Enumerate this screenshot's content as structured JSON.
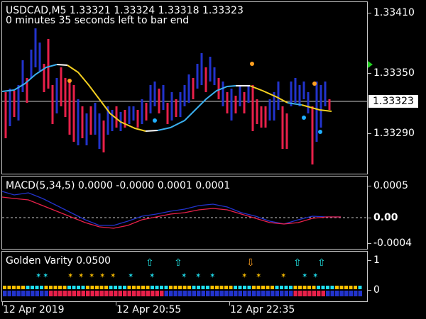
{
  "main": {
    "symbol_line": "USDCAD,M5  1.33321 1.33324 1.33318 1.33323",
    "timer_text": "0 minutes 35 seconds left to bar end",
    "price_labels": [
      "1.33410",
      "1.33350",
      "1.33290"
    ],
    "current_price": "1.33323"
  },
  "macd": {
    "title": "MACD(5,34,5) 0.0000 -0.0000 0.0001 0.0001",
    "labels": [
      "0.0005",
      "0.00",
      "-0.0004"
    ]
  },
  "golden_variety": {
    "title": "Golden Varity 0.0500",
    "labels": [
      "1",
      "0"
    ]
  },
  "time_axis": [
    "12 Apr 2019",
    "12 Apr 20:55",
    "12 Apr 22:35"
  ],
  "colors": {
    "bull_bar": "#2233cc",
    "bear_bar": "#e8204a",
    "ma_up": "#3ab0f0",
    "ma_down": "#f5d020",
    "ma_turn": "#ffffff",
    "dot_orange": "#ffa020",
    "dot_blue": "#20b0ff",
    "macd_main": "#2233cc",
    "macd_signal": "#e8204a",
    "gv_cyan": "#20e0f0",
    "gv_yellow": "#ffc000",
    "gv_blue": "#2233cc",
    "gv_red": "#e8204a",
    "arrow_up": "#20e0e0",
    "arrow_down": "#ffa020",
    "marker_green": "#20d020"
  }
}
